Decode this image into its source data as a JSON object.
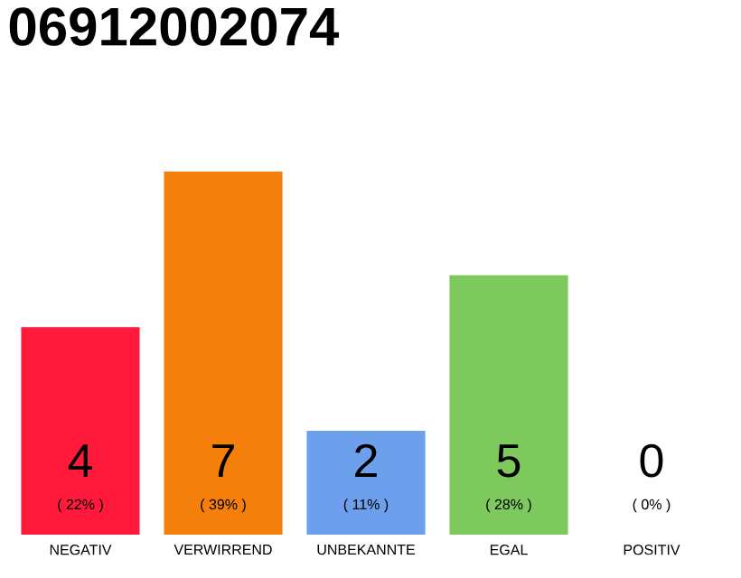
{
  "chart_data": {
    "type": "bar",
    "title": "06912002074",
    "categories": [
      "NEGATIV",
      "VERWIRREND",
      "UNBEKANNTE",
      "EGAL",
      "POSITIV"
    ],
    "values": [
      4,
      7,
      2,
      5,
      0
    ],
    "colors": [
      "#ff1a3c",
      "#f47f0b",
      "#6ca0ec",
      "#7ec95e",
      "#c8c8c8"
    ],
    "value_labels": [
      "4",
      "7",
      "2",
      "5",
      "0"
    ],
    "annotations": [
      "( 22% )",
      "( 39% )",
      "( 11% )",
      "( 28% )",
      "( 0% )"
    ],
    "tick_labels": "x"
  }
}
